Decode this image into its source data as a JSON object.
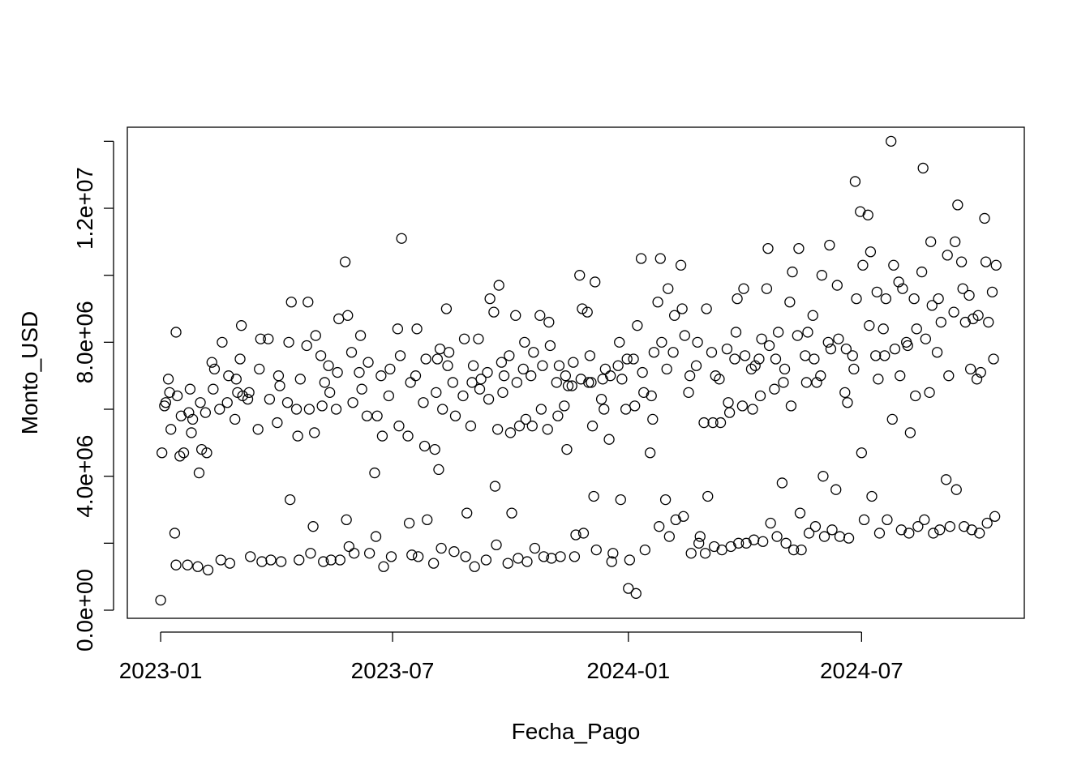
{
  "chart_data": {
    "type": "scatter",
    "x_label": "Fecha_Pago",
    "y_label": "Monto_USD",
    "xlim": [
      19332,
      20032
    ],
    "ylim": [
      -242000,
      14420000
    ],
    "xticks": [
      {
        "value": 19358,
        "label": "2023-01"
      },
      {
        "value": 19539,
        "label": "2023-07"
      },
      {
        "value": 19723,
        "label": "2024-01"
      },
      {
        "value": 19905,
        "label": "2024-07"
      }
    ],
    "yticks": [
      {
        "value": 0,
        "label": "0.0e+00"
      },
      {
        "value": 2000000,
        "label": null
      },
      {
        "value": 4000000,
        "label": "4.0e+06"
      },
      {
        "value": 6000000,
        "label": null
      },
      {
        "value": 8000000,
        "label": "8.0e+06"
      },
      {
        "value": 10000000,
        "label": null
      },
      {
        "value": 12000000,
        "label": "1.2e+07"
      },
      {
        "value": 14000000,
        "label": null
      }
    ],
    "color": "#000000",
    "x": [
      19358,
      19359,
      19361,
      19362,
      19364,
      19365,
      19366,
      19369,
      19370,
      19370,
      19371,
      19373,
      19374,
      19376,
      19379,
      19380,
      19381,
      19382,
      19383,
      19387,
      19388,
      19389,
      19390,
      19393,
      19394,
      19395,
      19398,
      19399,
      19400,
      19404,
      19405,
      19406,
      19410,
      19411,
      19412,
      19416,
      19417,
      19418,
      19420,
      19421,
      19422,
      19426,
      19427,
      19428,
      19434,
      19435,
      19436,
      19437,
      19442,
      19443,
      19444,
      19449,
      19450,
      19451,
      19452,
      19457,
      19458,
      19459,
      19460,
      19464,
      19465,
      19466,
      19467,
      19472,
      19473,
      19474,
      19475,
      19477,
      19478,
      19479,
      19483,
      19484,
      19485,
      19486,
      19489,
      19490,
      19491,
      19495,
      19496,
      19497,
      19498,
      19502,
      19503,
      19504,
      19505,
      19507,
      19508,
      19509,
      19513,
      19514,
      19515,
      19519,
      19520,
      19521,
      19525,
      19526,
      19527,
      19530,
      19531,
      19532,
      19536,
      19537,
      19538,
      19543,
      19544,
      19545,
      19546,
      19551,
      19552,
      19553,
      19554,
      19557,
      19558,
      19559,
      19563,
      19564,
      19565,
      19566,
      19571,
      19572,
      19573,
      19574,
      19575,
      19576,
      19577,
      19578,
      19581,
      19582,
      19583,
      19586,
      19587,
      19588,
      19594,
      19595,
      19596,
      19597,
      19600,
      19601,
      19602,
      19603,
      19606,
      19607,
      19608,
      19612,
      19613,
      19614,
      19615,
      19618,
      19619,
      19620,
      19621,
      19622,
      19624,
      19625,
      19626,
      19629,
      19630,
      19631,
      19632,
      19635,
      19636,
      19637,
      19638,
      19641,
      19642,
      19643,
      19644,
      19647,
      19648,
      19649,
      19650,
      19654,
      19655,
      19656,
      19657,
      19660,
      19661,
      19662,
      19663,
      19667,
      19668,
      19669,
      19670,
      19673,
      19674,
      19675,
      19676,
      19679,
      19680,
      19681,
      19682,
      19685,
      19686,
      19687,
      19688,
      19691,
      19692,
      19693,
      19694,
      19695,
      19696,
      19697,
      19698,
      19702,
      19703,
      19704,
      19705,
      19708,
      19709,
      19710,
      19711,
      19715,
      19716,
      19717,
      19718,
      19721,
      19722,
      19723,
      19724,
      19727,
      19728,
      19729,
      19730,
      19733,
      19734,
      19735,
      19736,
      19740,
      19741,
      19742,
      19743,
      19746,
      19747,
      19748,
      19749,
      19752,
      19753,
      19754,
      19755,
      19758,
      19759,
      19760,
      19764,
      19765,
      19766,
      19767,
      19770,
      19771,
      19772,
      19776,
      19777,
      19778,
      19779,
      19782,
      19783,
      19784,
      19785,
      19788,
      19789,
      19790,
      19791,
      19794,
      19795,
      19796,
      19800,
      19801,
      19802,
      19803,
      19806,
      19807,
      19808,
      19809,
      19812,
      19813,
      19814,
      19815,
      19819,
      19820,
      19821,
      19822,
      19825,
      19826,
      19827,
      19828,
      19831,
      19832,
      19833,
      19834,
      19837,
      19838,
      19839,
      19840,
      19843,
      19844,
      19845,
      19846,
      19849,
      19850,
      19851,
      19852,
      19855,
      19856,
      19857,
      19858,
      19861,
      19862,
      19863,
      19864,
      19867,
      19868,
      19869,
      19870,
      19873,
      19874,
      19875,
      19876,
      19879,
      19880,
      19881,
      19882,
      19885,
      19886,
      19887,
      19888,
      19892,
      19893,
      19894,
      19895,
      19898,
      19899,
      19900,
      19901,
      19904,
      19905,
      19906,
      19907,
      19910,
      19911,
      19912,
      19913,
      19916,
      19917,
      19918,
      19919,
      19922,
      19923,
      19924,
      19925,
      19928,
      19929,
      19930,
      19931,
      19934,
      19935,
      19936,
      19937,
      19940,
      19941,
      19942,
      19943,
      19946,
      19947,
      19948,
      19949,
      19952,
      19953,
      19954,
      19955,
      19958,
      19959,
      19960,
      19961,
      19964,
      19965,
      19966,
      19967,
      19971,
      19972,
      19973,
      19974,
      19977,
      19978,
      19979,
      19980,
      19983,
      19984,
      19985,
      19986,
      19989,
      19990,
      19991,
      19992,
      19995,
      19996,
      19997,
      19998,
      20001,
      20002,
      20003,
      20004,
      20007,
      20008,
      20009,
      20010
    ],
    "values": [
      300000.0,
      4700000.0,
      6100000.0,
      6200000.0,
      6900000.0,
      6500000.0,
      5400000.0,
      2300000.0,
      1350000.0,
      8300000.0,
      6400000.0,
      4600000.0,
      5800000.0,
      4700000.0,
      1350000.0,
      5900000.0,
      6600000.0,
      5300000.0,
      5700000.0,
      1300000.0,
      4100000.0,
      6200000.0,
      4800000.0,
      5900000.0,
      4700000.0,
      1200000.0,
      7400000.0,
      6600000.0,
      7200000.0,
      6000000.0,
      1500000.0,
      8000000.0,
      6200000.0,
      7000000.0,
      1400000.0,
      5700000.0,
      6900000.0,
      6500000.0,
      7500000.0,
      8500000.0,
      6400000.0,
      6300000.0,
      6500000.0,
      1600000.0,
      5400000.0,
      7200000.0,
      8100000.0,
      1450000.0,
      8100000.0,
      6300000.0,
      1500000.0,
      5600000.0,
      7000000.0,
      6700000.0,
      1450000.0,
      6200000.0,
      8000000.0,
      3300000.0,
      9200000.0,
      6000000.0,
      5200000.0,
      1500000.0,
      6900000.0,
      7900000.0,
      9200000.0,
      6000000.0,
      1700000.0,
      2500000.0,
      5300000.0,
      8200000.0,
      7600000.0,
      6100000.0,
      1450000.0,
      6800000.0,
      7300000.0,
      6500000.0,
      1500000.0,
      6000000.0,
      7100000.0,
      8700000.0,
      1500000.0,
      10400000.0,
      2700000.0,
      8800000.0,
      1900000.0,
      7700000.0,
      6200000.0,
      1700000.0,
      7100000.0,
      8200000.0,
      6600000.0,
      5800000.0,
      7400000.0,
      1700000.0,
      4100000.0,
      2200000.0,
      5800000.0,
      7000000.0,
      5200000.0,
      1300000.0,
      6400000.0,
      7200000.0,
      1600000.0,
      8400000.0,
      5500000.0,
      7600000.0,
      11100000.0,
      5200000.0,
      2600000.0,
      6800000.0,
      1650000.0,
      7000000.0,
      8400000.0,
      1600000.0,
      6200000.0,
      4900000.0,
      7500000.0,
      2700000.0,
      1400000.0,
      4800000.0,
      6500000.0,
      7500000.0,
      4200000.0,
      7800000.0,
      1850000.0,
      6000000.0,
      9000000.0,
      7300000.0,
      7700000.0,
      6800000.0,
      1750000.0,
      5800000.0,
      6400000.0,
      8100000.0,
      1600000.0,
      2900000.0,
      5500000.0,
      6800000.0,
      7300000.0,
      1300000.0,
      8100000.0,
      6600000.0,
      6900000.0,
      1500000.0,
      7100000.0,
      6300000.0,
      9300000.0,
      8900000.0,
      3700000.0,
      1950000.0,
      5400000.0,
      9700000.0,
      7400000.0,
      6500000.0,
      7000000.0,
      1400000.0,
      7600000.0,
      5300000.0,
      2900000.0,
      8800000.0,
      6800000.0,
      1550000.0,
      5500000.0,
      7200000.0,
      8000000.0,
      5700000.0,
      1450000.0,
      7000000.0,
      5500000.0,
      7700000.0,
      1850000.0,
      8800000.0,
      6000000.0,
      7300000.0,
      1600000.0,
      5400000.0,
      8600000.0,
      7900000.0,
      1550000.0,
      6800000.0,
      5800000.0,
      7300000.0,
      1600000.0,
      6100000.0,
      7000000.0,
      4800000.0,
      6700000.0,
      6700000.0,
      7400000.0,
      1600000.0,
      2250000.0,
      10000000.0,
      6900000.0,
      9000000.0,
      2300000.0,
      8900000.0,
      6800000.0,
      7600000.0,
      6800000.0,
      5500000.0,
      3400000.0,
      9800000.0,
      1800000.0,
      6300000.0,
      6900000.0,
      6000000.0,
      7200000.0,
      5100000.0,
      7000000.0,
      1450000.0,
      1700000.0,
      7300000.0,
      8000000.0,
      3300000.0,
      6900000.0,
      6000000.0,
      7500000.0,
      650000.0,
      1500000.0,
      7500000.0,
      6100000.0,
      500000.0,
      8500000.0,
      10500000.0,
      7100000.0,
      6500000.0,
      1800000.0,
      4700000.0,
      6400000.0,
      5700000.0,
      7700000.0,
      9200000.0,
      2500000.0,
      10500000.0,
      8000000.0,
      3300000.0,
      7200000.0,
      9600000.0,
      2200000.0,
      7700000.0,
      8800000.0,
      2700000.0,
      10300000.0,
      9000000.0,
      2800000.0,
      8200000.0,
      6500000.0,
      7000000.0,
      1700000.0,
      7300000.0,
      8000000.0,
      2000000.0,
      2200000.0,
      5600000.0,
      1700000.0,
      9000000.0,
      3400000.0,
      7700000.0,
      5600000.0,
      1900000.0,
      7000000.0,
      6900000.0,
      5600000.0,
      1800000.0,
      7800000.0,
      6200000.0,
      5900000.0,
      1900000.0,
      7500000.0,
      8300000.0,
      9300000.0,
      2000000.0,
      6100000.0,
      9600000.0,
      7600000.0,
      2000000.0,
      7200000.0,
      6000000.0,
      2100000.0,
      7300000.0,
      7500000.0,
      6400000.0,
      8100000.0,
      2050000.0,
      9600000.0,
      10800000.0,
      7900000.0,
      2600000.0,
      6600000.0,
      7500000.0,
      2200000.0,
      8300000.0,
      3800000.0,
      6800000.0,
      7200000.0,
      2000000.0,
      9200000.0,
      6100000.0,
      10100000.0,
      1800000.0,
      8200000.0,
      10800000.0,
      2900000.0,
      1800000.0,
      7600000.0,
      6800000.0,
      8300000.0,
      2300000.0,
      8800000.0,
      7500000.0,
      2500000.0,
      6800000.0,
      7000000.0,
      10000000.0,
      4000000.0,
      2200000.0,
      8000000.0,
      10900000.0,
      7800000.0,
      2400000.0,
      3600000.0,
      9700000.0,
      8100000.0,
      2200000.0,
      6500000.0,
      7800000.0,
      6200000.0,
      2150000.0,
      7600000.0,
      7200000.0,
      12800000.0,
      9300000.0,
      11900000.0,
      4700000.0,
      10300000.0,
      2700000.0,
      11800000.0,
      8500000.0,
      10700000.0,
      3400000.0,
      7600000.0,
      9500000.0,
      6900000.0,
      2300000.0,
      8400000.0,
      7600000.0,
      9300000.0,
      2700000.0,
      14000000.0,
      5700000.0,
      10300000.0,
      7800000.0,
      9800000.0,
      7000000.0,
      2400000.0,
      9600000.0,
      8000000.0,
      7900000.0,
      2300000.0,
      5300000.0,
      9300000.0,
      6400000.0,
      8400000.0,
      2500000.0,
      10100000.0,
      13200000.0,
      2700000.0,
      8100000.0,
      6500000.0,
      11000000.0,
      9100000.0,
      2300000.0,
      7700000.0,
      9300000.0,
      2400000.0,
      8600000.0,
      3900000.0,
      10600000.0,
      7000000.0,
      2500000.0,
      8900000.0,
      11000000.0,
      3600000.0,
      12100000.0,
      10400000.0,
      9600000.0,
      2500000.0,
      8600000.0,
      9400000.0,
      7200000.0,
      2400000.0,
      8700000.0,
      6900000.0,
      8800000.0,
      2300000.0,
      7100000.0,
      11700000.0,
      10400000.0,
      2600000.0,
      8600000.0,
      9500000.0,
      7500000.0,
      2800000.0,
      10300000.0
    ]
  }
}
